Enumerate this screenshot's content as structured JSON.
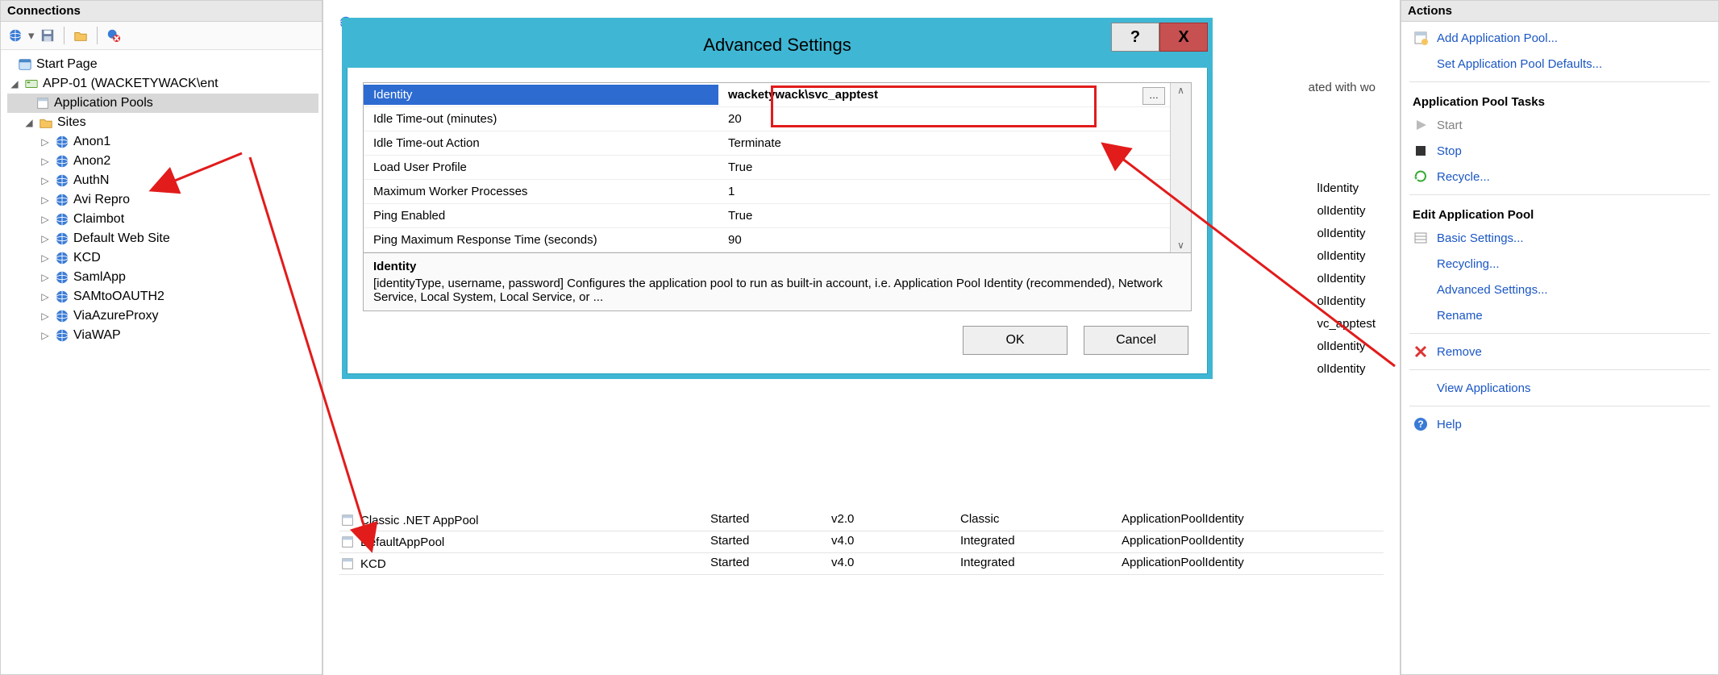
{
  "colors": {
    "link": "#1a56c4",
    "dialog_border": "#3fb7d4",
    "highlight_row": "#2d6bd1",
    "anno_red": "#e21b1b",
    "close_btn": "#C75050"
  },
  "left_panel": {
    "title": "Connections",
    "tree": {
      "start_page": "Start Page",
      "server": "APP-01 (WACKETYWACK\\ent",
      "app_pools": "Application Pools",
      "sites_label": "Sites",
      "sites": [
        "Anon1",
        "Anon2",
        "AuthN",
        "Avi Repro",
        "Claimbot",
        "Default Web Site",
        "KCD",
        "SamlApp",
        "SAMtoOAUTH2",
        "ViaAzureProxy",
        "ViaWAP"
      ]
    }
  },
  "center": {
    "associated_text": "ated with wo",
    "bg_identity_rows": [
      "lIdentity",
      "olIdentity",
      "olIdentity",
      "olIdentity",
      "olIdentity",
      "olIdentity",
      "vc_apptest",
      "olIdentity",
      "olIdentity"
    ],
    "table_rows": [
      {
        "name": "Classic .NET AppPool",
        "status": "Started",
        "clr": "v2.0",
        "pipeline": "Classic",
        "identity": "ApplicationPoolIdentity"
      },
      {
        "name": "DefaultAppPool",
        "status": "Started",
        "clr": "v4.0",
        "pipeline": "Integrated",
        "identity": "ApplicationPoolIdentity"
      },
      {
        "name": "KCD",
        "status": "Started",
        "clr": "v4.0",
        "pipeline": "Integrated",
        "identity": "ApplicationPoolIdentity"
      }
    ]
  },
  "dialog": {
    "title": "Advanced Settings",
    "help_char": "?",
    "close_char": "X",
    "rows": [
      {
        "name": "Identity",
        "value": "wacketywack\\svc_apptest",
        "selected": true,
        "has_ellipsis": true
      },
      {
        "name": "Idle Time-out (minutes)",
        "value": "20"
      },
      {
        "name": "Idle Time-out Action",
        "value": "Terminate"
      },
      {
        "name": "Load User Profile",
        "value": "True"
      },
      {
        "name": "Maximum Worker Processes",
        "value": "1"
      },
      {
        "name": "Ping Enabled",
        "value": "True"
      },
      {
        "name": "Ping Maximum Response Time (seconds)",
        "value": "90"
      }
    ],
    "desc_title": "Identity",
    "desc_body": "[identityType, username, password] Configures the application pool to run as built-in account, i.e. Application Pool Identity (recommended), Network Service, Local System, Local Service, or ...",
    "ok": "OK",
    "cancel": "Cancel"
  },
  "actions": {
    "title": "Actions",
    "add": "Add Application Pool...",
    "defaults": "Set Application Pool Defaults...",
    "section_tasks": "Application Pool Tasks",
    "start": "Start",
    "stop": "Stop",
    "recycle": "Recycle...",
    "section_edit": "Edit Application Pool",
    "basic": "Basic Settings...",
    "recycling": "Recycling...",
    "advanced": "Advanced Settings...",
    "rename": "Rename",
    "remove": "Remove",
    "view_apps": "View Applications",
    "help": "Help"
  }
}
